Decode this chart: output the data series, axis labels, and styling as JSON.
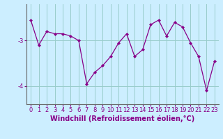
{
  "x": [
    0,
    1,
    2,
    3,
    4,
    5,
    6,
    7,
    8,
    9,
    10,
    11,
    12,
    13,
    14,
    15,
    16,
    17,
    18,
    19,
    20,
    21,
    22,
    23
  ],
  "y": [
    -2.55,
    -3.1,
    -2.8,
    -2.85,
    -2.85,
    -2.9,
    -3.0,
    -3.95,
    -3.7,
    -3.55,
    -3.35,
    -3.05,
    -2.85,
    -3.35,
    -3.2,
    -2.65,
    -2.55,
    -2.9,
    -2.6,
    -2.7,
    -3.05,
    -3.35,
    -4.1,
    -3.45
  ],
  "line_color": "#880088",
  "marker": "D",
  "marker_size": 2.0,
  "line_width": 0.9,
  "bg_color": "#cceeff",
  "grid_color": "#99cccc",
  "axis_color": "#666666",
  "xlabel": "Windchill (Refroidissement éolien,°C)",
  "yticks": [
    -4,
    -3
  ],
  "ylim": [
    -4.4,
    -2.2
  ],
  "xlim": [
    -0.5,
    23.5
  ],
  "xlabel_fontsize": 7.0,
  "tick_fontsize": 6.0,
  "ytick_color": "#880088"
}
